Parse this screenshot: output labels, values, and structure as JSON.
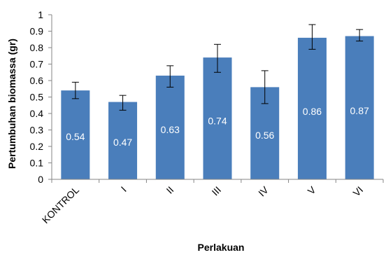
{
  "chart_data": {
    "type": "bar",
    "title": "",
    "xlabel": "Perlakuan",
    "ylabel": "Pertumbuhan biomassa (gr)",
    "ylim": [
      0,
      1
    ],
    "yticks": [
      "0",
      "0.1",
      "0.2",
      "0.3",
      "0.4",
      "0.5",
      "0.6",
      "0.7",
      "0.8",
      "0.9",
      "1"
    ],
    "categories": [
      "KONTROL",
      "I",
      "II",
      "III",
      "IV",
      "V",
      "VI"
    ],
    "values": [
      0.54,
      0.47,
      0.63,
      0.74,
      0.56,
      0.86,
      0.87
    ],
    "value_labels": [
      "0.54",
      "0.47",
      "0.63",
      "0.74",
      "0.56",
      "0.86",
      "0.87"
    ],
    "error_bars": [
      {
        "low": 0.49,
        "high": 0.59
      },
      {
        "low": 0.42,
        "high": 0.51
      },
      {
        "low": 0.56,
        "high": 0.69
      },
      {
        "low": 0.65,
        "high": 0.82
      },
      {
        "low": 0.46,
        "high": 0.66
      },
      {
        "low": 0.79,
        "high": 0.94
      },
      {
        "low": 0.84,
        "high": 0.91
      }
    ],
    "grid": false,
    "legend": "none",
    "bar_color": "#4a7ebb"
  }
}
